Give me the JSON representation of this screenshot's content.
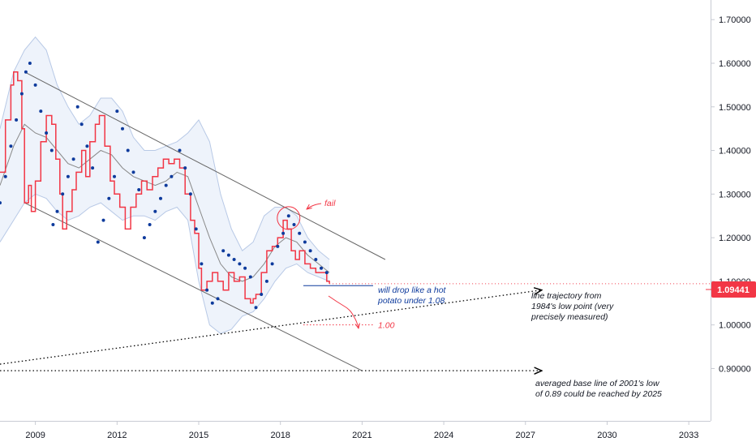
{
  "chart_data": {
    "type": "line",
    "x_unit": "year",
    "y_unit": "EUR/USD price",
    "xlim": [
      2007.7,
      2033.8
    ],
    "ylim": [
      0.78,
      1.745
    ],
    "grid": false,
    "x_ticks": [
      2009,
      2012,
      2015,
      2018,
      2021,
      2024,
      2027,
      2030,
      2033
    ],
    "x_tick_labels": [
      "2009",
      "2012",
      "2015",
      "2018",
      "2021",
      "2024",
      "2027",
      "2030",
      "2033"
    ],
    "y_ticks": [
      0.9,
      1.0,
      1.1,
      1.2,
      1.3,
      1.4,
      1.5,
      1.6,
      1.7
    ],
    "y_tick_labels": [
      "0.90000",
      "1.00000",
      "1.10000",
      "1.20000",
      "1.30000",
      "1.40000",
      "1.50000",
      "1.60000",
      "1.70000"
    ],
    "last_price": {
      "label": "1.09441",
      "value": 1.09441,
      "color": "#f23645"
    },
    "colors": {
      "price": "#f23645",
      "sar": "#0d3a9c",
      "band_fill": "#eef3fb",
      "band_line": "#b8c9e6",
      "basis": "#888888",
      "channel": "#666666",
      "arrow": "#000000",
      "note_blue": "#0d3a9c",
      "note_red": "#f23645"
    },
    "series": [
      {
        "kind": "price-step",
        "x": [
          2007.7,
          2007.9,
          2008.1,
          2008.2,
          2008.35,
          2008.5,
          2008.6,
          2008.75,
          2008.85,
          2009.0,
          2009.2,
          2009.4,
          2009.6,
          2009.75,
          2009.9,
          2010.0,
          2010.15,
          2010.35,
          2010.5,
          2010.7,
          2010.85,
          2011.0,
          2011.2,
          2011.35,
          2011.55,
          2011.75,
          2011.9,
          2012.1,
          2012.3,
          2012.5,
          2012.7,
          2012.9,
          2013.1,
          2013.3,
          2013.5,
          2013.7,
          2013.9,
          2014.1,
          2014.3,
          2014.5,
          2014.7,
          2014.85,
          2015.0,
          2015.1,
          2015.3,
          2015.5,
          2015.7,
          2015.9,
          2016.1,
          2016.3,
          2016.5,
          2016.7,
          2016.9,
          2017.0,
          2017.1,
          2017.3,
          2017.5,
          2017.7,
          2017.9,
          2018.1,
          2018.25,
          2018.4,
          2018.55,
          2018.7,
          2018.9,
          2019.1,
          2019.3,
          2019.5,
          2019.7,
          2019.8
        ],
        "values": [
          1.35,
          1.47,
          1.55,
          1.58,
          1.56,
          1.45,
          1.28,
          1.32,
          1.26,
          1.33,
          1.42,
          1.48,
          1.46,
          1.38,
          1.3,
          1.22,
          1.26,
          1.31,
          1.35,
          1.4,
          1.34,
          1.42,
          1.46,
          1.48,
          1.41,
          1.33,
          1.3,
          1.27,
          1.22,
          1.27,
          1.3,
          1.33,
          1.31,
          1.34,
          1.36,
          1.38,
          1.37,
          1.38,
          1.36,
          1.3,
          1.24,
          1.21,
          1.13,
          1.08,
          1.1,
          1.12,
          1.1,
          1.08,
          1.12,
          1.1,
          1.11,
          1.06,
          1.05,
          1.06,
          1.07,
          1.12,
          1.17,
          1.18,
          1.2,
          1.24,
          1.22,
          1.17,
          1.15,
          1.17,
          1.14,
          1.13,
          1.12,
          1.12,
          1.1,
          1.09441
        ]
      },
      {
        "kind": "parabolic-sar",
        "x": [
          2007.7,
          2007.9,
          2008.1,
          2008.3,
          2008.5,
          2008.65,
          2008.8,
          2009.0,
          2009.2,
          2009.4,
          2009.6,
          2009.65,
          2009.8,
          2010.0,
          2010.2,
          2010.4,
          2010.55,
          2010.7,
          2010.9,
          2011.1,
          2011.3,
          2011.5,
          2011.7,
          2011.9,
          2012.0,
          2012.2,
          2012.4,
          2012.6,
          2012.8,
          2013.0,
          2013.2,
          2013.4,
          2013.6,
          2013.8,
          2014.0,
          2014.3,
          2014.5,
          2014.7,
          2014.9,
          2015.1,
          2015.3,
          2015.5,
          2015.7,
          2015.9,
          2016.1,
          2016.3,
          2016.5,
          2016.7,
          2016.9,
          2017.1,
          2017.3,
          2017.5,
          2017.7,
          2017.9,
          2018.1,
          2018.3,
          2018.5,
          2018.7,
          2018.9,
          2019.1,
          2019.3,
          2019.5,
          2019.7
        ],
        "values": [
          1.28,
          1.34,
          1.41,
          1.47,
          1.53,
          1.58,
          1.6,
          1.55,
          1.49,
          1.44,
          1.4,
          1.23,
          1.26,
          1.3,
          1.34,
          1.38,
          1.5,
          1.46,
          1.41,
          1.36,
          1.19,
          1.24,
          1.29,
          1.34,
          1.49,
          1.45,
          1.4,
          1.35,
          1.31,
          1.2,
          1.23,
          1.26,
          1.29,
          1.32,
          1.34,
          1.4,
          1.36,
          1.3,
          1.22,
          1.14,
          1.08,
          1.05,
          1.06,
          1.17,
          1.16,
          1.15,
          1.14,
          1.13,
          1.11,
          1.04,
          1.07,
          1.1,
          1.14,
          1.18,
          1.21,
          1.25,
          1.23,
          1.21,
          1.19,
          1.17,
          1.15,
          1.13,
          1.12
        ]
      },
      {
        "kind": "band-upper",
        "x": [
          2007.7,
          2008.2,
          2008.6,
          2009.0,
          2009.4,
          2009.8,
          2010.2,
          2010.6,
          2011.0,
          2011.4,
          2011.8,
          2012.2,
          2012.6,
          2013.0,
          2013.4,
          2013.8,
          2014.2,
          2014.6,
          2015.0,
          2015.4,
          2015.8,
          2016.2,
          2016.6,
          2017.0,
          2017.4,
          2017.8,
          2018.2,
          2018.6,
          2019.0,
          2019.4,
          2019.8
        ],
        "values": [
          1.45,
          1.58,
          1.63,
          1.66,
          1.63,
          1.55,
          1.5,
          1.46,
          1.48,
          1.52,
          1.52,
          1.49,
          1.43,
          1.4,
          1.4,
          1.41,
          1.42,
          1.44,
          1.47,
          1.42,
          1.3,
          1.22,
          1.17,
          1.19,
          1.25,
          1.27,
          1.27,
          1.25,
          1.2,
          1.17,
          1.15
        ]
      },
      {
        "kind": "band-lower",
        "x": [
          2007.7,
          2008.2,
          2008.6,
          2009.0,
          2009.4,
          2009.8,
          2010.2,
          2010.6,
          2011.0,
          2011.4,
          2011.8,
          2012.2,
          2012.6,
          2013.0,
          2013.4,
          2013.8,
          2014.2,
          2014.6,
          2015.0,
          2015.4,
          2015.8,
          2016.2,
          2016.6,
          2017.0,
          2017.4,
          2017.8,
          2018.2,
          2018.6,
          2019.0,
          2019.4,
          2019.8
        ],
        "values": [
          1.19,
          1.24,
          1.28,
          1.3,
          1.29,
          1.26,
          1.24,
          1.25,
          1.27,
          1.28,
          1.26,
          1.24,
          1.25,
          1.25,
          1.24,
          1.26,
          1.27,
          1.24,
          1.1,
          1.0,
          0.98,
          0.99,
          1.02,
          1.03,
          1.06,
          1.1,
          1.13,
          1.14,
          1.12,
          1.11,
          1.1
        ]
      },
      {
        "kind": "band-basis",
        "x": [
          2007.7,
          2008.2,
          2008.6,
          2009.0,
          2009.4,
          2009.8,
          2010.2,
          2010.6,
          2011.0,
          2011.4,
          2011.8,
          2012.2,
          2012.6,
          2013.0,
          2013.4,
          2013.8,
          2014.2,
          2014.6,
          2015.0,
          2015.4,
          2015.8,
          2016.2,
          2016.6,
          2017.0,
          2017.4,
          2017.8,
          2018.2,
          2018.6,
          2019.0,
          2019.4,
          2019.8
        ],
        "values": [
          1.32,
          1.41,
          1.46,
          1.44,
          1.43,
          1.4,
          1.37,
          1.36,
          1.38,
          1.4,
          1.39,
          1.36,
          1.34,
          1.33,
          1.32,
          1.33,
          1.35,
          1.34,
          1.27,
          1.2,
          1.14,
          1.11,
          1.1,
          1.11,
          1.14,
          1.18,
          1.2,
          1.19,
          1.16,
          1.14,
          1.12
        ]
      }
    ],
    "channel_lines": [
      {
        "x": [
          2008.6,
          2021.85
        ],
        "values": [
          1.58,
          1.15
        ]
      },
      {
        "x": [
          2008.6,
          2021.0
        ],
        "values": [
          1.28,
          0.895
        ]
      }
    ],
    "projection_lines": [
      {
        "x": [
          2007.7,
          2027.6
        ],
        "values": [
          0.91,
          1.08
        ],
        "note": "1984's low point line"
      },
      {
        "x": [
          2007.7,
          2027.6
        ],
        "values": [
          0.895,
          0.895
        ],
        "note": "2001's low base line"
      }
    ],
    "annotations": [
      {
        "text": "fail",
        "color": "#f23645"
      },
      {
        "text": "will drop like a hot potato under 1.08",
        "color": "#0d3a9c"
      },
      {
        "text": "1.00",
        "color": "#f23645"
      },
      {
        "text": "line trajectory from 1984's low point (very precisely measured)",
        "color": "#131722"
      },
      {
        "text": "averaged base line of 2001's low of 0.89 could be reached by 2025",
        "color": "#131722"
      }
    ]
  }
}
